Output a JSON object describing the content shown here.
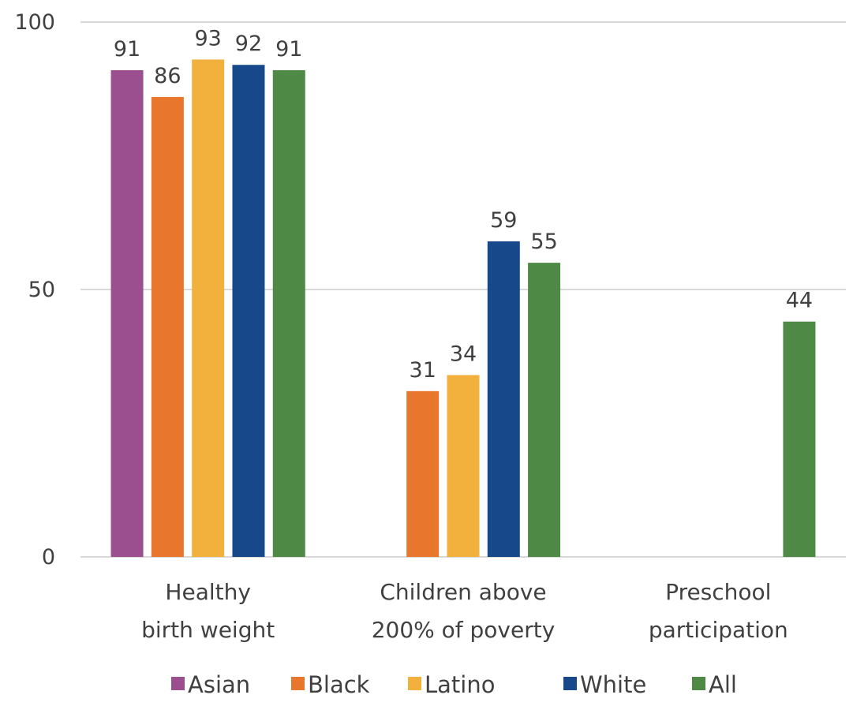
{
  "chart_data": {
    "type": "bar",
    "title": "",
    "xlabel": "",
    "ylabel": "",
    "ylim": [
      0,
      100
    ],
    "yticks": [
      0,
      50,
      100
    ],
    "grid": true,
    "legend_position": "bottom",
    "categories": [
      [
        "Healthy",
        "birth weight"
      ],
      [
        "Children above",
        "200% of poverty"
      ],
      [
        "Preschool",
        "participation"
      ]
    ],
    "series": [
      {
        "name": "Asian",
        "color": "#9B4F8F",
        "values": [
          91,
          null,
          null
        ]
      },
      {
        "name": "Black",
        "color": "#E8762D",
        "values": [
          86,
          31,
          null
        ]
      },
      {
        "name": "Latino",
        "color": "#F2B13C",
        "values": [
          93,
          34,
          null
        ]
      },
      {
        "name": "White",
        "color": "#17488A",
        "values": [
          92,
          59,
          null
        ]
      },
      {
        "name": "All",
        "color": "#4E8A45",
        "values": [
          91,
          55,
          44
        ]
      }
    ],
    "gridline_color": "#D9D9D9",
    "text_color": "#404040"
  }
}
